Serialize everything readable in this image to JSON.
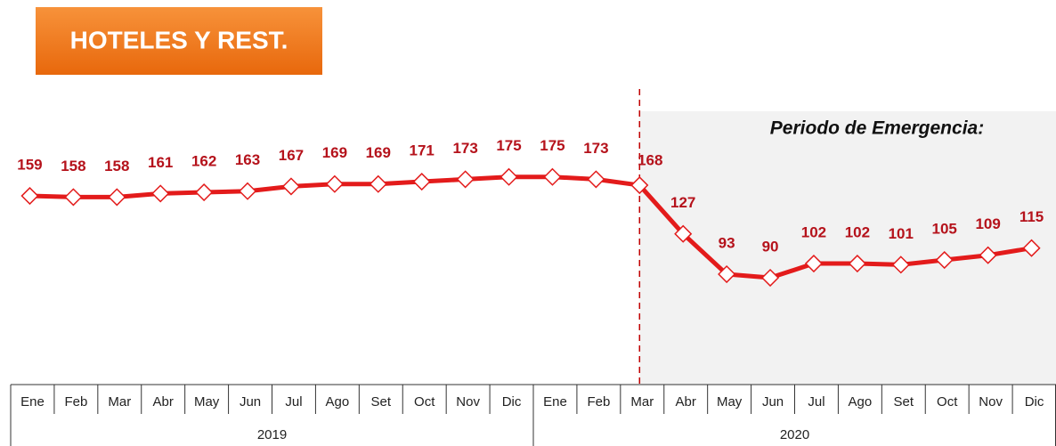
{
  "chart_data": {
    "type": "line",
    "title": "HOTELES Y REST.",
    "annotation": "Periodo de Emergencia:",
    "categories": [
      "Ene",
      "Feb",
      "Mar",
      "Abr",
      "May",
      "Jun",
      "Jul",
      "Ago",
      "Set",
      "Oct",
      "Nov",
      "Dic",
      "Ene",
      "Feb",
      "Mar",
      "Abr",
      "May",
      "Jun",
      "Jul",
      "Ago",
      "Set",
      "Oct",
      "Nov",
      "Dic"
    ],
    "x_groups": [
      "2019",
      "2020"
    ],
    "color": "#e31b1b",
    "values": [
      159,
      158,
      158,
      161,
      162,
      163,
      167,
      169,
      169,
      171,
      173,
      175,
      175,
      173,
      168,
      127,
      93,
      90,
      102,
      102,
      101,
      105,
      109,
      115
    ]
  }
}
